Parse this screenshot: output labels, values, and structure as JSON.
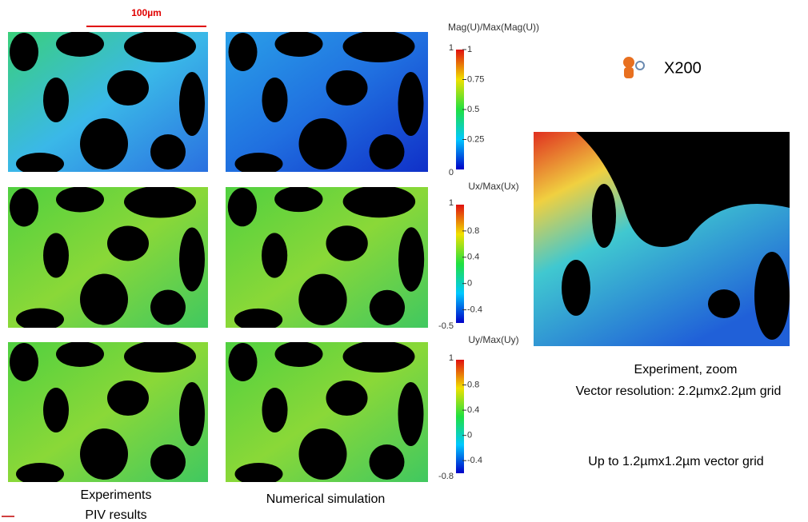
{
  "scale_bar": "100µm",
  "colorbars": [
    {
      "title": "Mag(U)/Max(Mag(U))",
      "left_labels": [
        "1",
        "0"
      ],
      "right_labels": [
        "1",
        "0.75",
        "0.5",
        "0.25"
      ]
    },
    {
      "title": "Ux/Max(Ux)",
      "left_labels": [
        "1",
        "-0.5"
      ],
      "right_labels": [
        "0.8",
        "0.4",
        "0",
        "-0.4"
      ]
    },
    {
      "title": "Uy/Max(Uy)",
      "left_labels": [
        "1",
        "-0.8"
      ],
      "right_labels": [
        "0.8",
        "0.4",
        "0",
        "-0.4"
      ]
    }
  ],
  "magnification": "X200",
  "zoom_caption": [
    "Experiment, zoom",
    "Vector resolution: 2.2µmx2.2µm grid"
  ],
  "grid_note": "Up to 1.2µmx1.2µm vector grid",
  "column_captions": {
    "experiments": [
      "Experiments",
      "PIV results"
    ],
    "simulation": "Numerical simulation"
  }
}
